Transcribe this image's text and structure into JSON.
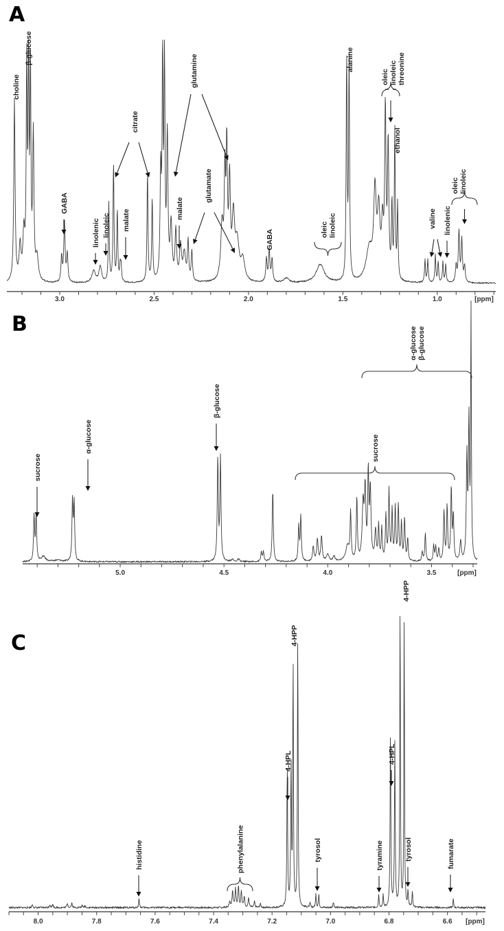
{
  "chart_data": [
    {
      "panel": "A",
      "type": "line",
      "title": "",
      "xlabel": "[ppm]",
      "ylabel": "",
      "x_reversed": true,
      "xlim": [
        3.28,
        0.69
      ],
      "xticks_major": [
        3.0,
        2.5,
        2.0,
        1.5,
        1.0
      ],
      "xtick_labels": [
        "3.0",
        "2.5",
        "2.0",
        "1.5",
        "1.0"
      ],
      "xticks_minor_step": 0.1,
      "grid": false,
      "legend": null,
      "peaks": [
        {
          "ppm": 3.24,
          "height": 0.78,
          "width": 0.004
        },
        {
          "ppm": 3.21,
          "height": 0.15,
          "width": 0.006
        },
        {
          "ppm": 3.19,
          "height": 0.2,
          "width": 0.006
        },
        {
          "ppm": 3.175,
          "height": 0.91,
          "width": 0.003
        },
        {
          "ppm": 3.165,
          "height": 0.93,
          "width": 0.003
        },
        {
          "ppm": 3.155,
          "height": 0.88,
          "width": 0.003
        },
        {
          "ppm": 3.14,
          "height": 0.62,
          "width": 0.004
        },
        {
          "ppm": 3.12,
          "height": 0.1,
          "width": 0.008
        },
        {
          "ppm": 2.99,
          "height": 0.11,
          "width": 0.004
        },
        {
          "ppm": 2.975,
          "height": 0.26,
          "width": 0.004
        },
        {
          "ppm": 2.96,
          "height": 0.12,
          "width": 0.004
        },
        {
          "ppm": 2.82,
          "height": 0.05,
          "width": 0.012
        },
        {
          "ppm": 2.785,
          "height": 0.07,
          "width": 0.008
        },
        {
          "ppm": 2.74,
          "height": 0.34,
          "width": 0.003
        },
        {
          "ppm": 2.715,
          "height": 0.52,
          "width": 0.003
        },
        {
          "ppm": 2.695,
          "height": 0.31,
          "width": 0.003
        },
        {
          "ppm": 2.68,
          "height": 0.07,
          "width": 0.003
        },
        {
          "ppm": 2.675,
          "height": 0.07,
          "width": 0.003
        },
        {
          "ppm": 2.535,
          "height": 0.48,
          "width": 0.003
        },
        {
          "ppm": 2.51,
          "height": 0.36,
          "width": 0.003
        },
        {
          "ppm": 2.465,
          "height": 0.46,
          "width": 0.004
        },
        {
          "ppm": 2.455,
          "height": 0.93,
          "width": 0.003
        },
        {
          "ppm": 2.445,
          "height": 0.97,
          "width": 0.003
        },
        {
          "ppm": 2.43,
          "height": 0.62,
          "width": 0.004
        },
        {
          "ppm": 2.41,
          "height": 0.24,
          "width": 0.006
        },
        {
          "ppm": 2.385,
          "height": 0.21,
          "width": 0.005
        },
        {
          "ppm": 2.36,
          "height": 0.15,
          "width": 0.006
        },
        {
          "ppm": 2.34,
          "height": 0.12,
          "width": 0.008
        },
        {
          "ppm": 2.32,
          "height": 0.17,
          "width": 0.004
        },
        {
          "ppm": 2.3,
          "height": 0.13,
          "width": 0.004
        },
        {
          "ppm": 2.14,
          "height": 0.24,
          "width": 0.008
        },
        {
          "ppm": 2.125,
          "height": 0.42,
          "width": 0.004
        },
        {
          "ppm": 2.115,
          "height": 0.55,
          "width": 0.004
        },
        {
          "ppm": 2.1,
          "height": 0.41,
          "width": 0.005
        },
        {
          "ppm": 2.08,
          "height": 0.26,
          "width": 0.008
        },
        {
          "ppm": 2.06,
          "height": 0.16,
          "width": 0.012
        },
        {
          "ppm": 2.03,
          "height": 0.09,
          "width": 0.012
        },
        {
          "ppm": 1.905,
          "height": 0.1,
          "width": 0.004
        },
        {
          "ppm": 1.89,
          "height": 0.14,
          "width": 0.004
        },
        {
          "ppm": 1.875,
          "height": 0.1,
          "width": 0.004
        },
        {
          "ppm": 1.8,
          "height": 0.02,
          "width": 0.015
        },
        {
          "ppm": 1.62,
          "height": 0.08,
          "width": 0.025
        },
        {
          "ppm": 1.48,
          "height": 0.96,
          "width": 0.003
        },
        {
          "ppm": 1.467,
          "height": 0.95,
          "width": 0.003
        },
        {
          "ppm": 1.36,
          "height": 0.14,
          "width": 0.02
        },
        {
          "ppm": 1.33,
          "height": 0.36,
          "width": 0.008
        },
        {
          "ppm": 1.31,
          "height": 0.28,
          "width": 0.008
        },
        {
          "ppm": 1.29,
          "height": 0.22,
          "width": 0.006
        },
        {
          "ppm": 1.275,
          "height": 0.72,
          "width": 0.004
        },
        {
          "ppm": 1.26,
          "height": 0.58,
          "width": 0.004
        },
        {
          "ppm": 1.24,
          "height": 0.32,
          "width": 0.003
        },
        {
          "ppm": 1.225,
          "height": 0.64,
          "width": 0.003
        },
        {
          "ppm": 1.21,
          "height": 0.32,
          "width": 0.003
        },
        {
          "ppm": 1.065,
          "height": 0.1,
          "width": 0.003
        },
        {
          "ppm": 1.05,
          "height": 0.1,
          "width": 0.003
        },
        {
          "ppm": 1.01,
          "height": 0.12,
          "width": 0.003
        },
        {
          "ppm": 0.995,
          "height": 0.09,
          "width": 0.003
        },
        {
          "ppm": 0.97,
          "height": 0.09,
          "width": 0.003
        },
        {
          "ppm": 0.955,
          "height": 0.08,
          "width": 0.003
        },
        {
          "ppm": 0.9,
          "height": 0.07,
          "width": 0.004
        },
        {
          "ppm": 0.885,
          "height": 0.22,
          "width": 0.004
        },
        {
          "ppm": 0.87,
          "height": 0.18,
          "width": 0.004
        },
        {
          "ppm": 0.855,
          "height": 0.07,
          "width": 0.004
        }
      ],
      "annotations": [
        {
          "label": "choline",
          "ppm": 3.24
        },
        {
          "label": "β-glucose",
          "ppm": 3.17
        },
        {
          "label": "GABA",
          "ppm": 2.975
        },
        {
          "label": "linolenic",
          "ppm": 2.81
        },
        {
          "label": "linoleic",
          "ppm": 2.77
        },
        {
          "label": "malate",
          "ppm": 2.68
        },
        {
          "label": "citrate",
          "ppm": [
            2.71,
            2.53
          ]
        },
        {
          "label": "glutamine",
          "ppm": [
            2.44,
            2.1
          ]
        },
        {
          "label": "malate",
          "ppm": 2.385
        },
        {
          "label": "glutamate",
          "ppm": [
            2.34,
            2.07
          ]
        },
        {
          "label": "GABA",
          "ppm": 1.89
        },
        {
          "label": "oleic / linoleic",
          "ppm": 1.6
        },
        {
          "label": "alanine",
          "ppm": 1.475
        },
        {
          "label": "oleic / linoleic / threonine",
          "ppm": 1.29
        },
        {
          "label": "ethanol",
          "ppm": 1.22
        },
        {
          "label": "valine",
          "ppm": [
            1.06,
            1.0
          ]
        },
        {
          "label": "linolenic",
          "ppm": 0.97
        },
        {
          "label": "oleic / linoleic",
          "ppm": 0.885
        }
      ]
    },
    {
      "panel": "B",
      "type": "line",
      "title": "",
      "xlabel": "[ppm]",
      "ylabel": "",
      "x_reversed": true,
      "xlim": [
        5.47,
        3.28
      ],
      "xticks_major": [
        5.0,
        4.5,
        4.0,
        3.5
      ],
      "xtick_labels": [
        "5.0",
        "4.5",
        "4.0",
        "3.5"
      ],
      "xticks_minor_step": 0.1,
      "grid": false,
      "legend": null,
      "peaks": [
        {
          "ppm": 5.415,
          "height": 0.18,
          "width": 0.003
        },
        {
          "ppm": 5.405,
          "height": 0.18,
          "width": 0.003
        },
        {
          "ppm": 5.37,
          "height": 0.02,
          "width": 0.012
        },
        {
          "ppm": 5.3,
          "height": 0.006,
          "width": 0.02
        },
        {
          "ppm": 5.23,
          "height": 0.24,
          "width": 0.003
        },
        {
          "ppm": 5.222,
          "height": 0.23,
          "width": 0.003
        },
        {
          "ppm": 4.53,
          "height": 0.41,
          "width": 0.003
        },
        {
          "ppm": 4.517,
          "height": 0.41,
          "width": 0.003
        },
        {
          "ppm": 4.46,
          "height": 0.01,
          "width": 0.005
        },
        {
          "ppm": 4.43,
          "height": 0.01,
          "width": 0.005
        },
        {
          "ppm": 4.32,
          "height": 0.04,
          "width": 0.003
        },
        {
          "ppm": 4.31,
          "height": 0.04,
          "width": 0.003
        },
        {
          "ppm": 4.265,
          "height": 0.29,
          "width": 0.003
        },
        {
          "ppm": 4.14,
          "height": 0.14,
          "width": 0.003
        },
        {
          "ppm": 4.13,
          "height": 0.18,
          "width": 0.003
        },
        {
          "ppm": 4.07,
          "height": 0.06,
          "width": 0.004
        },
        {
          "ppm": 4.05,
          "height": 0.09,
          "width": 0.004
        },
        {
          "ppm": 4.03,
          "height": 0.1,
          "width": 0.004
        },
        {
          "ppm": 4.0,
          "height": 0.03,
          "width": 0.006
        },
        {
          "ppm": 3.97,
          "height": 0.02,
          "width": 0.006
        },
        {
          "ppm": 3.905,
          "height": 0.06,
          "width": 0.01
        },
        {
          "ppm": 3.89,
          "height": 0.19,
          "width": 0.003
        },
        {
          "ppm": 3.86,
          "height": 0.25,
          "width": 0.003
        },
        {
          "ppm": 3.83,
          "height": 0.22,
          "width": 0.005
        },
        {
          "ppm": 3.82,
          "height": 0.27,
          "width": 0.004
        },
        {
          "ppm": 3.805,
          "height": 0.34,
          "width": 0.003
        },
        {
          "ppm": 3.795,
          "height": 0.28,
          "width": 0.004
        },
        {
          "ppm": 3.77,
          "height": 0.12,
          "width": 0.004
        },
        {
          "ppm": 3.755,
          "height": 0.14,
          "width": 0.003
        },
        {
          "ppm": 3.74,
          "height": 0.13,
          "width": 0.003
        },
        {
          "ppm": 3.72,
          "height": 0.18,
          "width": 0.003
        },
        {
          "ppm": 3.705,
          "height": 0.28,
          "width": 0.003
        },
        {
          "ppm": 3.69,
          "height": 0.2,
          "width": 0.003
        },
        {
          "ppm": 3.675,
          "height": 0.21,
          "width": 0.003
        },
        {
          "ppm": 3.66,
          "height": 0.22,
          "width": 0.003
        },
        {
          "ppm": 3.645,
          "height": 0.15,
          "width": 0.003
        },
        {
          "ppm": 3.63,
          "height": 0.17,
          "width": 0.003
        },
        {
          "ppm": 3.615,
          "height": 0.09,
          "width": 0.003
        },
        {
          "ppm": 3.545,
          "height": 0.04,
          "width": 0.003
        },
        {
          "ppm": 3.53,
          "height": 0.11,
          "width": 0.003
        },
        {
          "ppm": 3.49,
          "height": 0.06,
          "width": 0.003
        },
        {
          "ppm": 3.48,
          "height": 0.06,
          "width": 0.003
        },
        {
          "ppm": 3.465,
          "height": 0.05,
          "width": 0.003
        },
        {
          "ppm": 3.44,
          "height": 0.2,
          "width": 0.003
        },
        {
          "ppm": 3.425,
          "height": 0.22,
          "width": 0.003
        },
        {
          "ppm": 3.405,
          "height": 0.29,
          "width": 0.003
        },
        {
          "ppm": 3.395,
          "height": 0.18,
          "width": 0.003
        },
        {
          "ppm": 3.36,
          "height": 0.08,
          "width": 0.004
        },
        {
          "ppm": 3.33,
          "height": 0.41,
          "width": 0.003
        },
        {
          "ppm": 3.32,
          "height": 0.55,
          "width": 0.003
        },
        {
          "ppm": 3.31,
          "height": 1.0,
          "width": 0.002
        }
      ],
      "annotations": [
        {
          "label": "sucrose",
          "ppm": 5.41
        },
        {
          "label": "α-glucose",
          "ppm": 5.226
        },
        {
          "label": "β-glucose",
          "ppm": 4.523
        },
        {
          "label": "sucrose",
          "ppm": [
            4.15,
            3.37
          ]
        },
        {
          "label": "α-glucose / β-glucose",
          "ppm": [
            3.84,
            3.28
          ]
        }
      ]
    },
    {
      "panel": "C",
      "type": "line",
      "title": "",
      "xlabel": "[ppm]",
      "ylabel": "",
      "x_reversed": true,
      "xlim": [
        8.1,
        6.47
      ],
      "xticks_major": [
        8.0,
        7.8,
        7.6,
        7.4,
        7.2,
        7.0,
        6.8,
        6.6
      ],
      "xtick_labels": [
        "8.0",
        "7.8",
        "7.6",
        "7.4",
        "7.2",
        "7.0",
        "6.8",
        "6.6"
      ],
      "xticks_minor_step": 0.05,
      "grid": false,
      "legend": null,
      "peaks": [
        {
          "ppm": 8.02,
          "height": 0.01,
          "width": 0.002
        },
        {
          "ppm": 7.96,
          "height": 0.01,
          "width": 0.002
        },
        {
          "ppm": 7.95,
          "height": 0.01,
          "width": 0.002
        },
        {
          "ppm": 7.9,
          "height": 0.014,
          "width": 0.002
        },
        {
          "ppm": 7.885,
          "height": 0.014,
          "width": 0.002
        },
        {
          "ppm": 7.85,
          "height": 0.006,
          "width": 0.002
        },
        {
          "ppm": 7.84,
          "height": 0.006,
          "width": 0.002
        },
        {
          "ppm": 7.655,
          "height": 0.03,
          "width": 0.0015
        },
        {
          "ppm": 7.345,
          "height": 0.02,
          "width": 0.002
        },
        {
          "ppm": 7.335,
          "height": 0.055,
          "width": 0.002
        },
        {
          "ppm": 7.325,
          "height": 0.06,
          "width": 0.002
        },
        {
          "ppm": 7.315,
          "height": 0.065,
          "width": 0.002
        },
        {
          "ppm": 7.305,
          "height": 0.048,
          "width": 0.002
        },
        {
          "ppm": 7.295,
          "height": 0.035,
          "width": 0.002
        },
        {
          "ppm": 7.28,
          "height": 0.03,
          "width": 0.002
        },
        {
          "ppm": 7.26,
          "height": 0.018,
          "width": 0.002
        },
        {
          "ppm": 7.24,
          "height": 0.012,
          "width": 0.002
        },
        {
          "ppm": 7.148,
          "height": 0.45,
          "width": 0.0015
        },
        {
          "ppm": 7.135,
          "height": 0.44,
          "width": 0.0015
        },
        {
          "ppm": 7.128,
          "height": 0.79,
          "width": 0.0013
        },
        {
          "ppm": 7.112,
          "height": 0.88,
          "width": 0.0013
        },
        {
          "ppm": 7.07,
          "height": 0.012,
          "width": 0.002
        },
        {
          "ppm": 7.05,
          "height": 0.04,
          "width": 0.0015
        },
        {
          "ppm": 7.04,
          "height": 0.04,
          "width": 0.0015
        },
        {
          "ppm": 6.99,
          "height": 0.015,
          "width": 0.002
        },
        {
          "ppm": 6.835,
          "height": 0.04,
          "width": 0.0015
        },
        {
          "ppm": 6.82,
          "height": 0.038,
          "width": 0.0015
        },
        {
          "ppm": 6.795,
          "height": 0.54,
          "width": 0.0015
        },
        {
          "ppm": 6.78,
          "height": 0.51,
          "width": 0.0015
        },
        {
          "ppm": 6.762,
          "height": 1.0,
          "width": 0.0012
        },
        {
          "ppm": 6.748,
          "height": 0.94,
          "width": 0.0012
        },
        {
          "ppm": 6.735,
          "height": 0.05,
          "width": 0.0015
        },
        {
          "ppm": 6.72,
          "height": 0.05,
          "width": 0.0015
        },
        {
          "ppm": 6.58,
          "height": 0.03,
          "width": 0.0012
        }
      ],
      "annotations": [
        {
          "label": "histidine",
          "ppm": 7.655
        },
        {
          "label": "phenylalanine",
          "ppm": [
            7.36,
            7.27
          ]
        },
        {
          "label": "4-HPL",
          "ppm": 7.138
        },
        {
          "label": "4-HPP",
          "ppm": 7.12
        },
        {
          "label": "tyrosol",
          "ppm": 7.045
        },
        {
          "label": "tyramine",
          "ppm": 6.828
        },
        {
          "label": "4-HPL",
          "ppm": 6.787
        },
        {
          "label": "4-HPP",
          "ppm": 6.755
        },
        {
          "label": "tyrosol",
          "ppm": 6.728
        },
        {
          "label": "fumarate",
          "ppm": 6.58
        }
      ]
    }
  ],
  "panels": {
    "a": {
      "letter": "A",
      "unit": "[ppm]"
    },
    "b": {
      "letter": "B",
      "unit": "[ppm]"
    },
    "c": {
      "letter": "C",
      "unit": "[ppm]"
    }
  }
}
